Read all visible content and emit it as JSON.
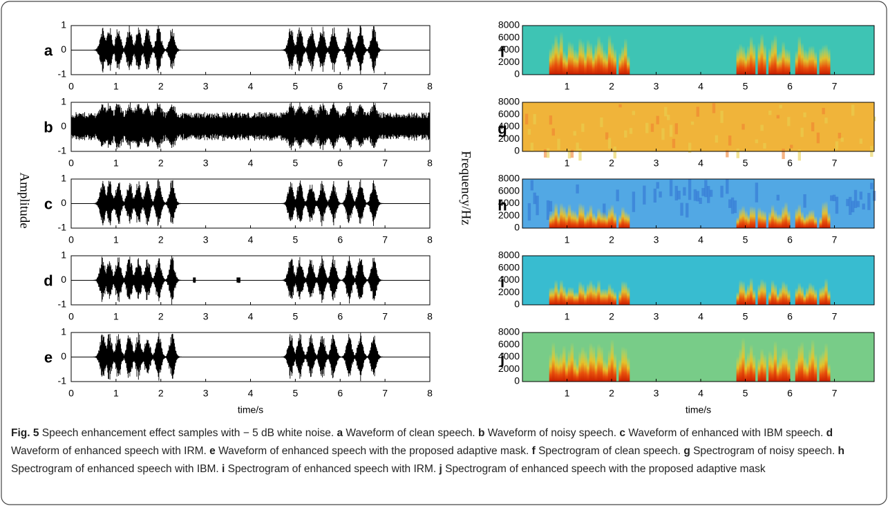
{
  "figure": {
    "left_panels": [
      {
        "label": "a"
      },
      {
        "label": "b"
      },
      {
        "label": "c"
      },
      {
        "label": "d"
      },
      {
        "label": "e"
      }
    ],
    "left_yticks": [
      "1",
      "0",
      "-1"
    ],
    "left_xticks": [
      "0",
      "1",
      "2",
      "3",
      "4",
      "5",
      "6",
      "7",
      "8"
    ],
    "left_ylabel": "Amplitude",
    "left_xlabel": "time/s",
    "right_panels": [
      {
        "label": "f"
      },
      {
        "label": "g"
      },
      {
        "label": "h"
      },
      {
        "label": "i"
      },
      {
        "label": "j"
      }
    ],
    "right_yticks": [
      "8000",
      "6000",
      "4000",
      "2000",
      "0"
    ],
    "right_xticks": [
      "1",
      "2",
      "3",
      "4",
      "5",
      "6",
      "7"
    ],
    "right_ylabel": "Frequency/Hz",
    "right_xlabel": "time/s"
  },
  "caption": [
    {
      "bold": "Fig. 5",
      "text": " Speech enhancement effect samples with − 5 dB white noise. "
    },
    {
      "bold": "a",
      "text": " Waveform of clean speech. "
    },
    {
      "bold": "b",
      "text": " Waveform of noisy speech. "
    },
    {
      "bold": "c",
      "text": " Waveform of enhanced with IBM speech. "
    },
    {
      "bold": "d",
      "text": " Waveform of enhanced speech with IRM. "
    },
    {
      "bold": "e",
      "text": " Waveform of enhanced speech with the proposed adaptive mask. "
    },
    {
      "bold": "f",
      "text": " Spectrogram of clean speech. "
    },
    {
      "bold": "g",
      "text": " Spectrogram of noisy speech. "
    },
    {
      "bold": "h",
      "text": " Spectrogram of enhanced speech with IBM. "
    },
    {
      "bold": "i",
      "text": " Spectrogram of enhanced speech with IRM. "
    },
    {
      "bold": "j",
      "text": " Spectrogram of enhanced speech with the proposed adaptive mask"
    }
  ]
}
